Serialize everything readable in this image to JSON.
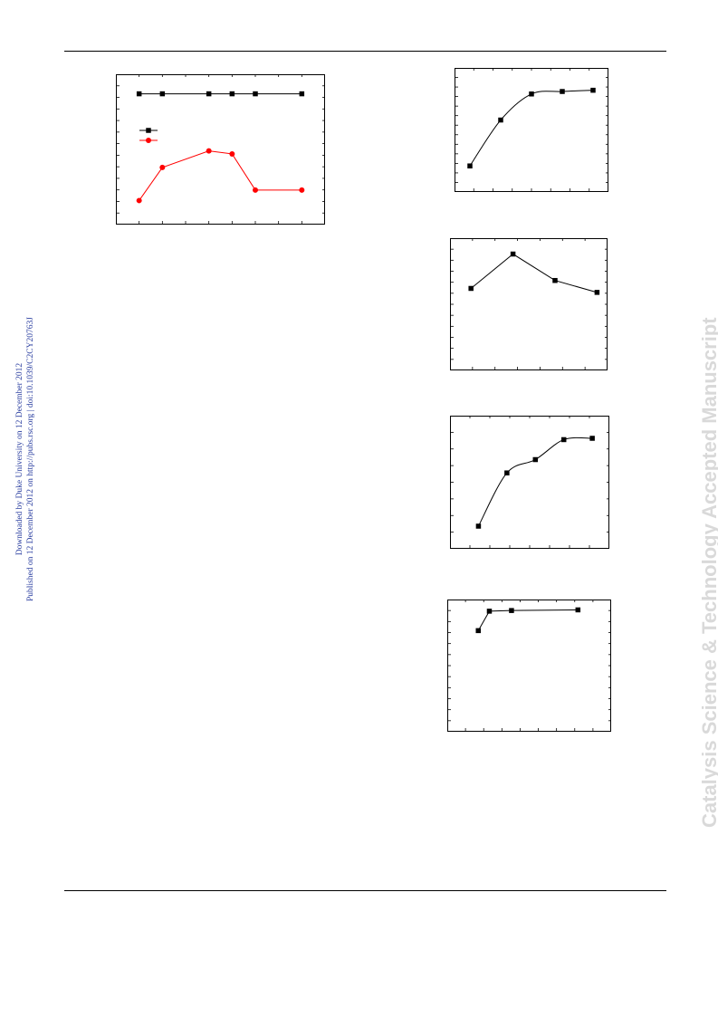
{
  "page": {
    "side_note_line1": "Downloaded by Duke University on 12 December 2012",
    "side_note_line2": "Published on 12 December 2012 on http://pubs.rsc.org | doi:10.1039/C2CY20763J",
    "watermark": "Catalysis Science & Technology Accepted Manuscript",
    "link_color": "#2b3fa0",
    "watermark_color": "#d9d9d9"
  },
  "chart_data": [
    {
      "type": "line",
      "x": [
        0,
        1,
        3,
        4,
        5,
        7
      ],
      "xlim": [
        -1,
        8
      ],
      "ylim": [
        0,
        10
      ],
      "series": [
        {
          "values": [
            8.7,
            8.7,
            8.7,
            8.7,
            8.7,
            8.7
          ],
          "color": "#000000",
          "marker": "square"
        },
        {
          "values": [
            1.6,
            3.8,
            4.9,
            4.7,
            2.3,
            2.3
          ],
          "color": "#ff0000",
          "marker": "circle"
        }
      ],
      "legend": "upper-left",
      "x_ticks": 9,
      "y_ticks": 13
    },
    {
      "type": "line",
      "x": [
        1,
        3,
        5,
        7,
        9
      ],
      "values": [
        2.1,
        5.8,
        7.9,
        8.1,
        8.2
      ],
      "xlim": [
        0,
        10
      ],
      "ylim": [
        0,
        10
      ],
      "smooth": true,
      "x_ticks": 8,
      "y_ticks": 13
    },
    {
      "type": "line",
      "x": [
        1,
        3,
        5,
        7
      ],
      "values": [
        6.2,
        8.8,
        6.8,
        5.9
      ],
      "xlim": [
        0,
        7.5
      ],
      "ylim": [
        0,
        10
      ],
      "smooth": false,
      "x_ticks": 7,
      "y_ticks": 12
    },
    {
      "type": "line",
      "x": [
        1,
        2,
        3,
        4,
        5
      ],
      "values": [
        1.7,
        5.7,
        6.7,
        8.2,
        8.3
      ],
      "xlim": [
        0,
        5.6
      ],
      "ylim": [
        0,
        10
      ],
      "smooth": true,
      "x_ticks": 8,
      "y_ticks": 8
    },
    {
      "type": "line",
      "x": [
        1,
        1.5,
        2.5,
        5.5
      ],
      "values": [
        7.8,
        9.3,
        9.35,
        9.4
      ],
      "xlim": [
        -0.4,
        7
      ],
      "ylim": [
        0,
        10.2
      ],
      "smooth": false,
      "x_ticks": 9,
      "y_ticks": 12
    }
  ]
}
